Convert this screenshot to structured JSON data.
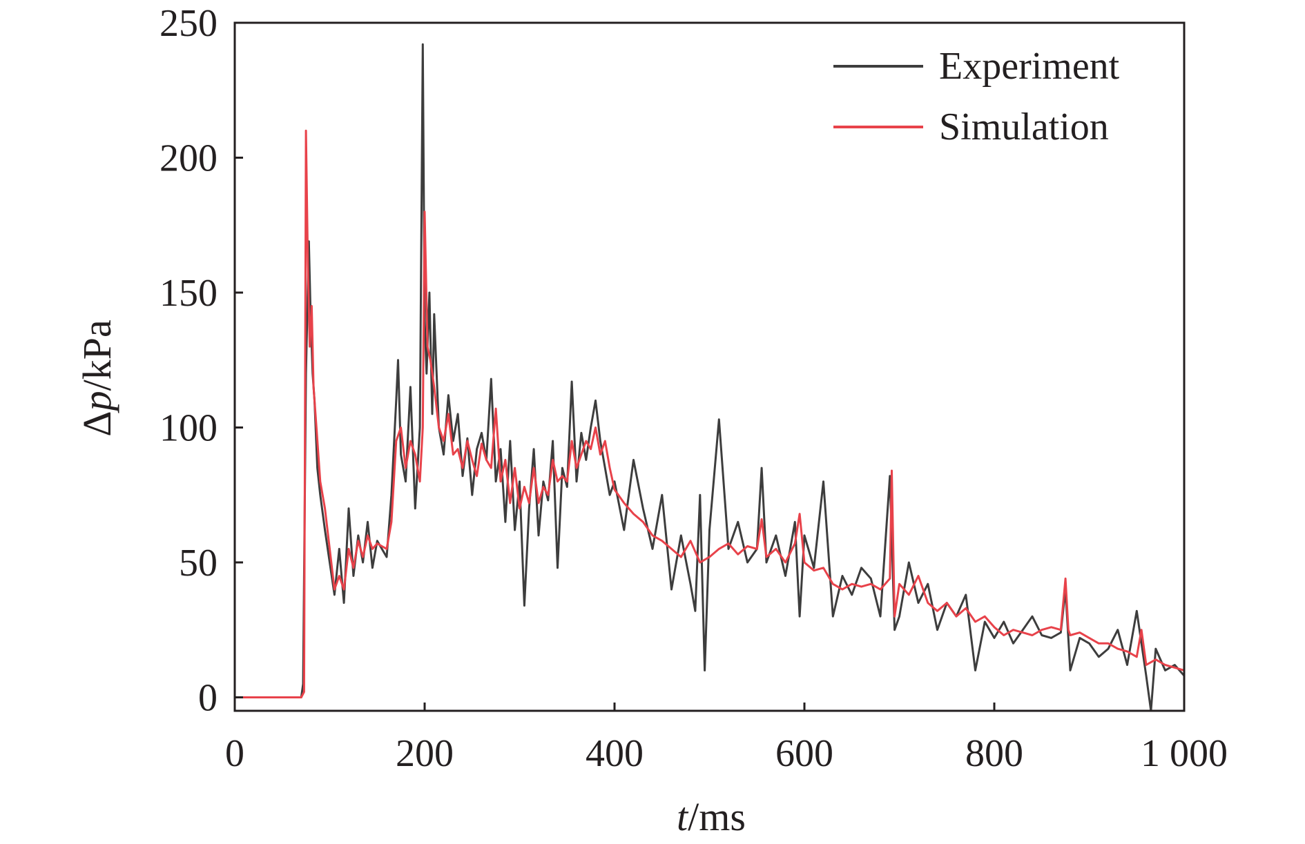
{
  "chart_data": {
    "type": "line",
    "title": "",
    "xlabel_var": "t",
    "xlabel_unit": "/ms",
    "ylabel_var": "p",
    "ylabel_prefix": "Δ",
    "ylabel_unit": "/kPa",
    "xlim": [
      0,
      1000
    ],
    "ylim": [
      -5,
      250
    ],
    "x_ticks": [
      0,
      200,
      400,
      600,
      800,
      1000
    ],
    "x_tick_labels": [
      "0",
      "200",
      "400",
      "600",
      "800",
      "1 000"
    ],
    "y_ticks": [
      0,
      50,
      100,
      150,
      200,
      250
    ],
    "y_tick_labels": [
      "0",
      "50",
      "100",
      "150",
      "200",
      "250"
    ],
    "grid": false,
    "legend_position": "top-right",
    "colors": {
      "experiment": "#3d3d3d",
      "simulation": "#e8424a",
      "axis": "#231f20"
    },
    "series": [
      {
        "name": "Experiment",
        "key": "experiment",
        "x": [
          0,
          40,
          70,
          72,
          75,
          78,
          80,
          82,
          84,
          87,
          90,
          95,
          100,
          105,
          110,
          115,
          120,
          125,
          130,
          135,
          140,
          145,
          150,
          155,
          160,
          165,
          170,
          172,
          175,
          180,
          185,
          190,
          195,
          198,
          200,
          202,
          205,
          208,
          210,
          212,
          215,
          220,
          225,
          230,
          235,
          240,
          245,
          250,
          255,
          260,
          265,
          270,
          275,
          280,
          285,
          290,
          295,
          300,
          305,
          310,
          315,
          320,
          325,
          330,
          335,
          340,
          345,
          350,
          355,
          360,
          365,
          370,
          375,
          380,
          385,
          390,
          395,
          400,
          410,
          420,
          430,
          440,
          450,
          460,
          470,
          480,
          485,
          490,
          495,
          500,
          510,
          520,
          530,
          540,
          550,
          555,
          560,
          570,
          580,
          590,
          595,
          600,
          610,
          620,
          630,
          640,
          650,
          660,
          670,
          680,
          690,
          695,
          700,
          710,
          720,
          730,
          740,
          750,
          760,
          770,
          780,
          790,
          800,
          810,
          820,
          830,
          840,
          850,
          860,
          870,
          875,
          880,
          890,
          900,
          910,
          920,
          930,
          940,
          950,
          960,
          965,
          970,
          980,
          990,
          1000
        ],
        "y": [
          0,
          0,
          0,
          5,
          120,
          169,
          140,
          120,
          110,
          85,
          75,
          62,
          50,
          38,
          55,
          35,
          70,
          45,
          60,
          50,
          65,
          48,
          58,
          55,
          52,
          75,
          110,
          125,
          90,
          80,
          115,
          70,
          100,
          242,
          140,
          120,
          150,
          105,
          142,
          125,
          100,
          90,
          112,
          95,
          105,
          82,
          96,
          75,
          92,
          98,
          88,
          118,
          80,
          92,
          65,
          95,
          62,
          80,
          34,
          70,
          92,
          60,
          80,
          73,
          95,
          48,
          85,
          78,
          117,
          80,
          98,
          88,
          100,
          110,
          95,
          85,
          75,
          80,
          62,
          88,
          70,
          55,
          75,
          40,
          60,
          42,
          32,
          75,
          10,
          62,
          103,
          55,
          65,
          50,
          55,
          85,
          50,
          60,
          45,
          65,
          30,
          60,
          48,
          80,
          30,
          45,
          38,
          48,
          44,
          30,
          82,
          25,
          30,
          50,
          35,
          42,
          25,
          35,
          30,
          38,
          10,
          28,
          22,
          28,
          20,
          25,
          30,
          23,
          22,
          24,
          40,
          10,
          22,
          20,
          15,
          18,
          25,
          12,
          32,
          8,
          -5,
          18,
          10,
          12,
          8
        ]
      },
      {
        "name": "Simulation",
        "key": "simulation",
        "x": [
          0,
          40,
          70,
          73,
          75,
          77,
          79,
          81,
          83,
          86,
          90,
          95,
          100,
          105,
          110,
          115,
          120,
          125,
          130,
          135,
          140,
          145,
          150,
          155,
          160,
          165,
          170,
          175,
          180,
          185,
          190,
          195,
          198,
          200,
          203,
          206,
          210,
          215,
          220,
          225,
          230,
          235,
          240,
          245,
          250,
          255,
          260,
          265,
          270,
          275,
          280,
          285,
          290,
          295,
          300,
          305,
          310,
          315,
          320,
          325,
          330,
          335,
          340,
          345,
          350,
          355,
          360,
          365,
          370,
          375,
          380,
          385,
          390,
          395,
          400,
          410,
          420,
          430,
          440,
          450,
          460,
          470,
          480,
          490,
          500,
          510,
          520,
          530,
          540,
          550,
          555,
          560,
          570,
          580,
          590,
          595,
          600,
          610,
          620,
          630,
          640,
          650,
          660,
          670,
          680,
          690,
          692,
          695,
          700,
          710,
          720,
          730,
          740,
          750,
          760,
          770,
          780,
          790,
          800,
          810,
          820,
          830,
          840,
          850,
          860,
          870,
          875,
          878,
          880,
          890,
          900,
          910,
          920,
          930,
          940,
          950,
          955,
          960,
          970,
          980,
          990,
          1000
        ],
        "y": [
          0,
          0,
          0,
          2,
          210,
          160,
          130,
          145,
          115,
          100,
          80,
          70,
          55,
          40,
          45,
          40,
          55,
          48,
          58,
          52,
          60,
          55,
          57,
          56,
          55,
          65,
          95,
          100,
          85,
          95,
          90,
          80,
          100,
          180,
          130,
          125,
          115,
          100,
          95,
          105,
          90,
          92,
          85,
          95,
          88,
          82,
          94,
          88,
          85,
          107,
          80,
          88,
          72,
          85,
          70,
          78,
          72,
          85,
          72,
          78,
          75,
          88,
          80,
          82,
          80,
          95,
          85,
          90,
          95,
          92,
          100,
          90,
          95,
          85,
          77,
          72,
          68,
          65,
          60,
          58,
          55,
          52,
          58,
          50,
          52,
          55,
          57,
          53,
          56,
          55,
          66,
          52,
          55,
          50,
          57,
          68,
          50,
          47,
          48,
          42,
          40,
          42,
          41,
          42,
          40,
          44,
          84,
          30,
          42,
          38,
          45,
          35,
          32,
          35,
          30,
          33,
          28,
          30,
          26,
          23,
          25,
          24,
          23,
          25,
          26,
          25,
          44,
          25,
          23,
          24,
          22,
          20,
          20,
          18,
          17,
          15,
          25,
          12,
          14,
          12,
          11,
          10
        ]
      }
    ]
  }
}
